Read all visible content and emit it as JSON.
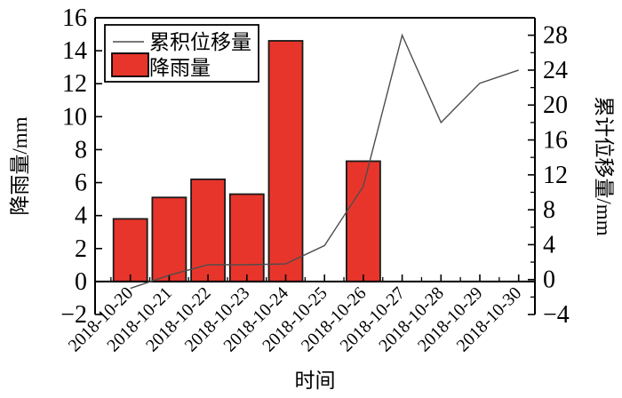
{
  "chart_data": {
    "type": "bar",
    "subtype": "bar-line-combo",
    "title": "",
    "xlabel": "时间",
    "categories": [
      "2018-10-20",
      "2018-10-21",
      "2018-10-22",
      "2018-10-23",
      "2018-10-24",
      "2018-10-25",
      "2018-10-26",
      "2018-10-27",
      "2018-10-28",
      "2018-10-29",
      "2018-10-30"
    ],
    "series": [
      {
        "name": "降雨量",
        "type": "bar",
        "axis": "left",
        "color": "#e8352b",
        "edge_color": "#1a1a1a",
        "values": [
          3.8,
          5.1,
          6.2,
          5.3,
          14.6,
          0,
          7.3,
          0,
          0,
          0,
          0
        ]
      },
      {
        "name": "累积位移量",
        "type": "line",
        "axis": "right",
        "color": "#4d4d4d",
        "values": [
          -1.0,
          0.5,
          1.7,
          1.7,
          1.8,
          3.9,
          10.7,
          28.0,
          18.0,
          22.5,
          24.0
        ]
      }
    ],
    "left_axis": {
      "label": "降雨量/mm",
      "min": -2,
      "max": 16,
      "major_step": 2,
      "ticks": [
        -2,
        0,
        2,
        4,
        6,
        8,
        10,
        12,
        14,
        16
      ]
    },
    "right_axis": {
      "label": "累计位移量/mm",
      "min": -4,
      "max": 30,
      "major_step": 4,
      "minor_step": 2,
      "ticks": [
        -4,
        0,
        4,
        8,
        12,
        16,
        20,
        24,
        28
      ]
    },
    "x_axis_at_zero": true,
    "grid": false,
    "legend": {
      "position": "upper-left-inside",
      "entries": [
        {
          "label": "累积位移量",
          "marker": "line"
        },
        {
          "label": "降雨量",
          "marker": "bar"
        }
      ]
    }
  }
}
